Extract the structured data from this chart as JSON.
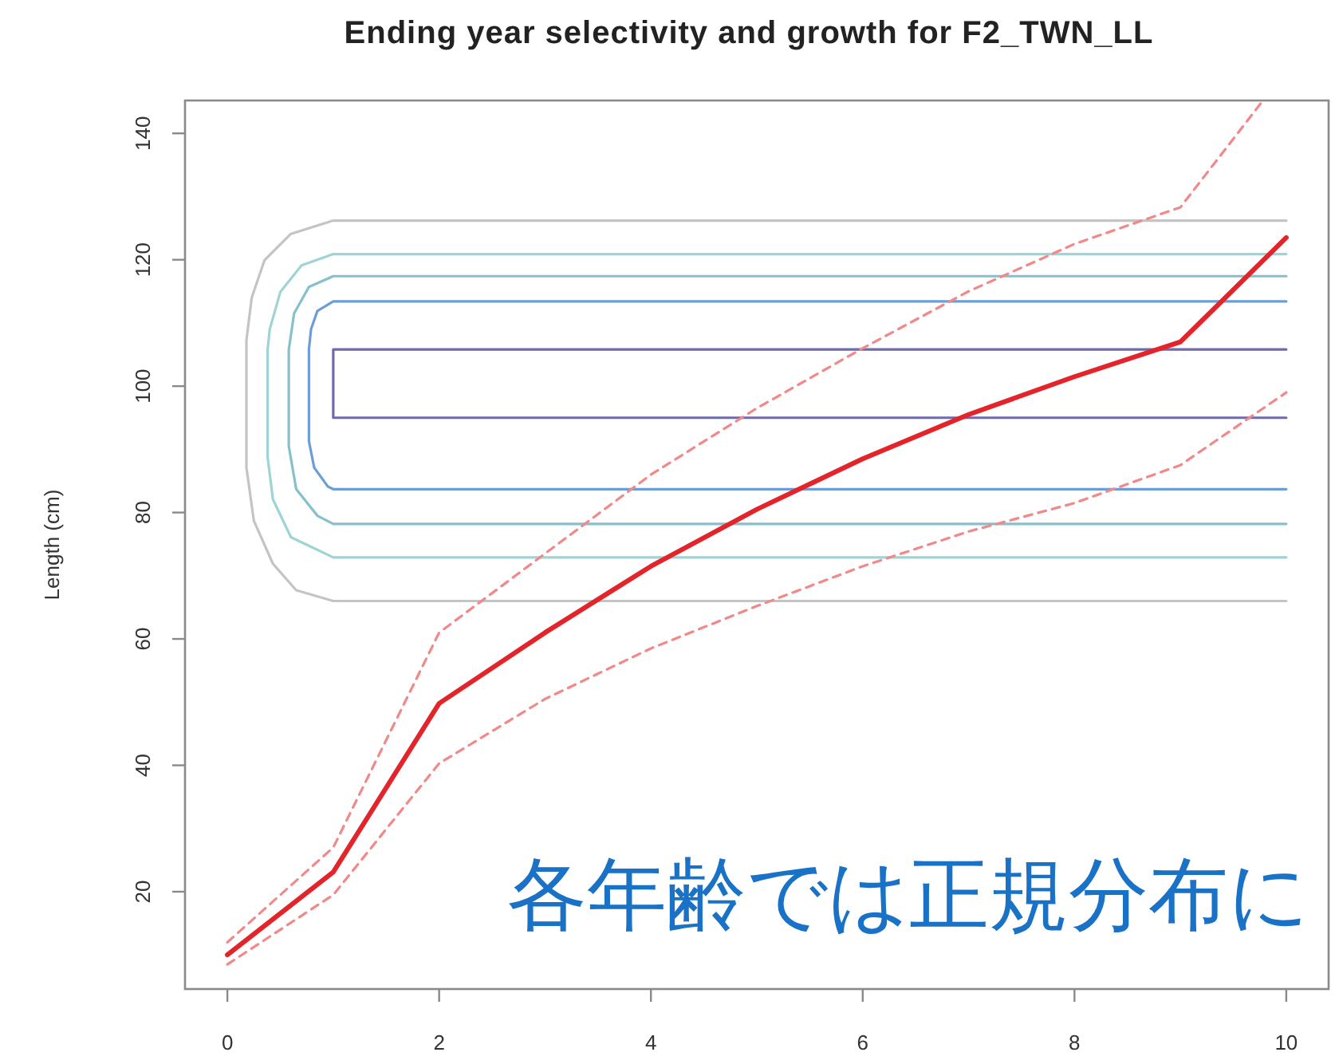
{
  "chart_data": {
    "type": "line",
    "title": "Ending year selectivity and growth for F2_TWN_LL",
    "ylabel": "Length (cm)",
    "annotations": [
      "各年齢では正規分布に"
    ],
    "x": [
      0,
      1,
      2,
      3,
      4,
      5,
      6,
      7,
      8,
      9,
      10
    ],
    "xlim": [
      -0.4,
      10.4
    ],
    "ylim": [
      4.6,
      145.2
    ],
    "xticks": [
      0,
      2,
      4,
      6,
      8,
      10
    ],
    "yticks": [
      20,
      40,
      60,
      80,
      100,
      120,
      140
    ],
    "series": [
      {
        "color": "#e3242b",
        "line_style": "solid",
        "values": [
          10,
          23.1,
          49.8,
          61,
          71.5,
          80.5,
          88.5,
          95.5,
          101.5,
          107,
          123.5
        ]
      },
      {
        "color": "#f08a8a",
        "line_style": "dashed",
        "x": [
          0,
          1,
          2,
          3,
          4,
          5,
          6,
          7,
          8,
          9,
          9.78
        ],
        "values": [
          12,
          27,
          61,
          73.5,
          86,
          96.5,
          106,
          115,
          122.5,
          128.3,
          145.2
        ]
      },
      {
        "color": "#f08a8a",
        "line_style": "dashed",
        "values": [
          8.5,
          19.5,
          40.3,
          50.5,
          58.5,
          65.2,
          71.5,
          77,
          81.5,
          87.5,
          99
        ]
      },
      {
        "color": "#c4c4c4",
        "line_style": "solid",
        "x": [
          10,
          1,
          0.6,
          0.35,
          0.23,
          0.18,
          0.18,
          0.25,
          0.43,
          0.65,
          1,
          10
        ],
        "values": [
          126.2,
          126.2,
          124.1,
          119.9,
          114,
          107.3,
          87.1,
          78.7,
          71.9,
          67.7,
          66,
          66
        ]
      },
      {
        "color": "#9fd4d6",
        "line_style": "solid",
        "x": [
          10,
          1,
          0.7,
          0.5,
          0.4,
          0.38,
          0.38,
          0.43,
          0.6,
          1,
          10
        ],
        "values": [
          120.9,
          120.9,
          119.1,
          114.9,
          109,
          105.8,
          88.8,
          82.1,
          76.1,
          72.9,
          72.9
        ]
      },
      {
        "color": "#86c0cc",
        "line_style": "solid",
        "x": [
          10,
          1,
          0.77,
          0.63,
          0.58,
          0.58,
          0.65,
          0.85,
          1,
          10
        ],
        "values": [
          117.4,
          117.4,
          115.7,
          111.5,
          105.8,
          90.5,
          83.7,
          79.5,
          78.2,
          78.2
        ]
      },
      {
        "color": "#6b9ed6",
        "line_style": "solid",
        "x": [
          10,
          1,
          0.85,
          0.79,
          0.77,
          0.77,
          0.82,
          0.95,
          1,
          10
        ],
        "values": [
          113.4,
          113.4,
          111.9,
          109,
          105.8,
          91.3,
          87.1,
          84.1,
          83.7,
          83.7
        ]
      },
      {
        "color": "#6f6aaa",
        "line_style": "solid",
        "x": [
          10,
          1,
          1,
          10
        ],
        "values": [
          105.8,
          105.8,
          95,
          95
        ]
      }
    ]
  }
}
